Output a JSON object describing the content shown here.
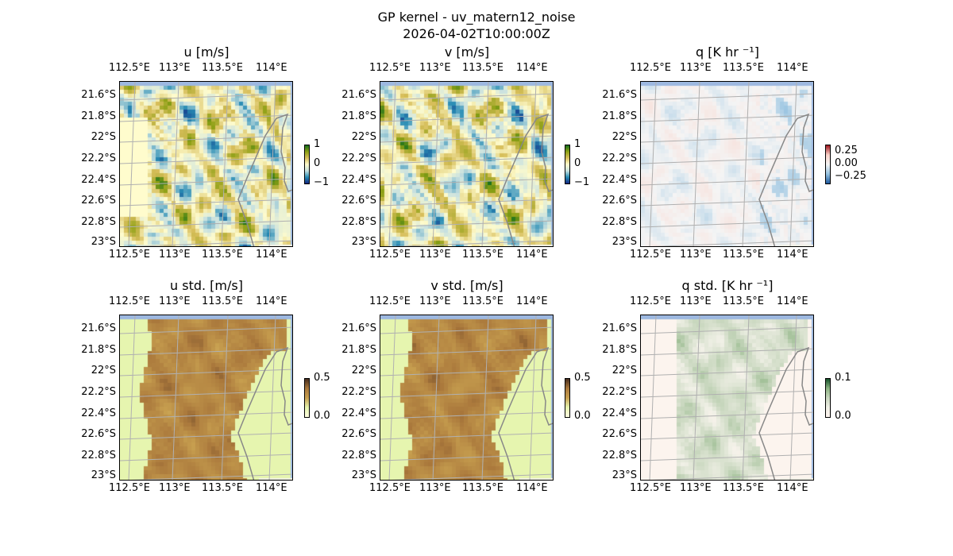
{
  "title": "GP kernel - uv_matern12_noise",
  "subtitle": "2026-04-02T10:00:00Z",
  "lon_ticks": [
    "112.5°E",
    "113°E",
    "113.5°E",
    "114°E"
  ],
  "lat_ticks": [
    "21.6°S",
    "21.8°S",
    "22°S",
    "22.2°S",
    "22.4°S",
    "22.6°S",
    "22.8°S",
    "23°S"
  ],
  "colors": {
    "ocean": "#9db8e0",
    "land": "#f0f0e6",
    "coast": "#888888",
    "grid": "#b0b0b0"
  },
  "panels": [
    {
      "title": "u [m/s]",
      "cmap": "BrBG_like_u",
      "cbar_ticks": [
        "1",
        "0",
        "−1"
      ],
      "kind": "signed"
    },
    {
      "title": "v [m/s]",
      "cmap": "BrBG_like_v",
      "cbar_ticks": [
        "1",
        "0",
        "−1"
      ],
      "kind": "signed"
    },
    {
      "title": "q [K hr ⁻¹]",
      "cmap": "RdBu",
      "cbar_ticks": [
        "0.25",
        "0.00",
        "−0.25"
      ],
      "kind": "q"
    },
    {
      "title": "u std. [m/s]",
      "cmap": "brown",
      "cbar_ticks": [
        "0.5",
        "0.0"
      ],
      "kind": "std"
    },
    {
      "title": "v std. [m/s]",
      "cmap": "brown",
      "cbar_ticks": [
        "0.5",
        "0.0"
      ],
      "kind": "std"
    },
    {
      "title": "q std. [K hr ⁻¹]",
      "cmap": "green",
      "cbar_ticks": [
        "0.1",
        "0.0"
      ],
      "kind": "qstd"
    }
  ]
}
